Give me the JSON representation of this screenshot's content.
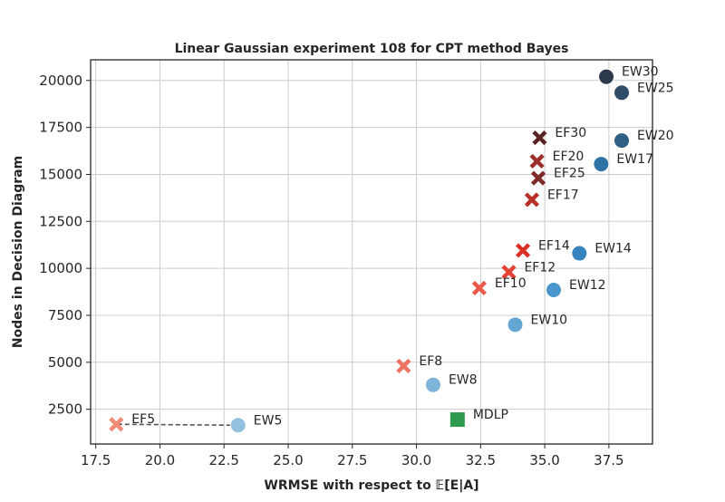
{
  "chart_data": {
    "type": "scatter",
    "title": "Linear Gaussian experiment 108 for CPT method Bayes",
    "xlabel": "WRMSE with respect to 𝔼[E|A]",
    "ylabel": "Nodes in Decision Diagram",
    "xlim": [
      17.3,
      39.2
    ],
    "ylim": [
      650,
      21100
    ],
    "xticks": [
      "17.5",
      "20.0",
      "22.5",
      "25.0",
      "27.5",
      "30.0",
      "32.5",
      "35.0",
      "37.5"
    ],
    "xtick_values": [
      17.5,
      20.0,
      22.5,
      25.0,
      27.5,
      30.0,
      32.5,
      35.0,
      37.5
    ],
    "yticks": [
      "2500",
      "5000",
      "7500",
      "10000",
      "12500",
      "15000",
      "17500",
      "20000"
    ],
    "ytick_values": [
      2500,
      5000,
      7500,
      10000,
      12500,
      15000,
      17500,
      20000
    ],
    "grid": true,
    "points": [
      {
        "label": "EW5",
        "method": "EW",
        "x": 23.05,
        "y": 1650,
        "color": "#92c0df"
      },
      {
        "label": "EW8",
        "method": "EW",
        "x": 30.65,
        "y": 3800,
        "color": "#7db4d9"
      },
      {
        "label": "EW10",
        "method": "EW",
        "x": 33.85,
        "y": 7000,
        "color": "#64a6d3"
      },
      {
        "label": "EW12",
        "method": "EW",
        "x": 35.35,
        "y": 8850,
        "color": "#4a95cb"
      },
      {
        "label": "EW14",
        "method": "EW",
        "x": 36.35,
        "y": 10800,
        "color": "#3584c0"
      },
      {
        "label": "EW17",
        "method": "EW",
        "x": 37.2,
        "y": 15550,
        "color": "#2f72a5"
      },
      {
        "label": "EW20",
        "method": "EW",
        "x": 38.0,
        "y": 16800,
        "color": "#2e5f84"
      },
      {
        "label": "EW25",
        "method": "EW",
        "x": 38.0,
        "y": 19350,
        "color": "#2f4d68"
      },
      {
        "label": "EW30",
        "method": "EW",
        "x": 37.4,
        "y": 20200,
        "color": "#2b3a4d"
      },
      {
        "label": "EF5",
        "method": "EF",
        "x": 18.3,
        "y": 1700,
        "color": "#f08b76"
      },
      {
        "label": "EF8",
        "method": "EF",
        "x": 29.5,
        "y": 4800,
        "color": "#ee7361"
      },
      {
        "label": "EF10",
        "method": "EF",
        "x": 32.45,
        "y": 8950,
        "color": "#ea5a4b"
      },
      {
        "label": "EF12",
        "method": "EF",
        "x": 33.6,
        "y": 9800,
        "color": "#e44336"
      },
      {
        "label": "EF14",
        "method": "EF",
        "x": 34.15,
        "y": 10950,
        "color": "#d93028"
      },
      {
        "label": "EF17",
        "method": "EF",
        "x": 34.5,
        "y": 13650,
        "color": "#b8302a"
      },
      {
        "label": "EF20",
        "method": "EF",
        "x": 34.7,
        "y": 15700,
        "color": "#9a2f2b"
      },
      {
        "label": "EF25",
        "method": "EF",
        "x": 34.75,
        "y": 14800,
        "color": "#7e2b29"
      },
      {
        "label": "EF30",
        "method": "EF",
        "x": 34.8,
        "y": 16950,
        "color": "#5a2424"
      },
      {
        "label": "MDLP",
        "method": "MDLP",
        "x": 31.6,
        "y": 1950,
        "color": "#2e9a4e"
      }
    ],
    "connector": {
      "from": "EW5",
      "to": "EF5",
      "style": "dashed",
      "color": "#555555"
    }
  }
}
